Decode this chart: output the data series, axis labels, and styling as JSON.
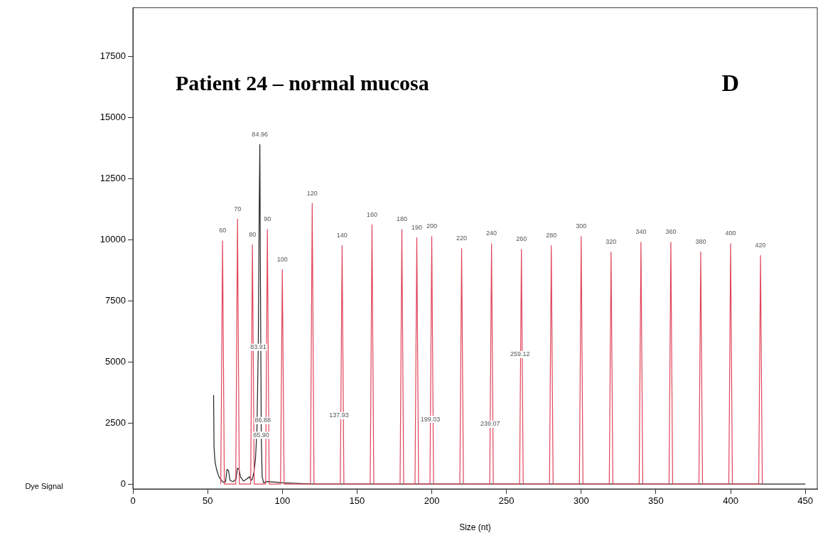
{
  "chart_data": {
    "type": "line",
    "title": "Patient 24 – normal mucosa",
    "xlabel": "Size (nt)",
    "ylabel": "Dye Signal",
    "xlim": [
      0,
      458
    ],
    "xticks": [
      0,
      50,
      100,
      150,
      200,
      250,
      300,
      350,
      400,
      450
    ],
    "ylim": [
      -200,
      19500
    ],
    "yticks": [
      0,
      2500,
      5000,
      7500,
      10000,
      12500,
      15000,
      17500
    ],
    "grid": false,
    "legend": false,
    "marker": "none",
    "line_style": "solid",
    "series": [
      {
        "color": "#e0455a",
        "x": [
          58.8,
          60,
          61.2,
          68.8,
          70,
          71.2,
          78.8,
          80,
          81.2,
          88.8,
          90,
          91.2,
          98.8,
          100,
          101.2,
          118.8,
          120,
          121.2,
          138.8,
          140,
          141.2,
          158.8,
          160,
          161.2,
          178.8,
          180,
          181.2,
          188.8,
          190,
          191.2,
          198.8,
          200,
          201.2,
          218.8,
          220,
          221.2,
          238.8,
          240,
          241.2,
          258.8,
          260,
          261.2,
          278.8,
          280,
          281.2,
          298.8,
          300,
          301.2,
          318.8,
          320,
          321.2,
          338.8,
          340,
          341.2,
          358.8,
          360,
          361.2,
          378.8,
          380,
          381.2,
          398.8,
          400,
          401.2,
          418.8,
          420,
          421.2
        ],
        "values": [
          0,
          9960,
          0,
          0,
          10850,
          0,
          0,
          9790,
          0,
          0,
          10420,
          0,
          0,
          8780,
          0,
          0,
          11490,
          0,
          0,
          9760,
          0,
          0,
          10620,
          0,
          0,
          10420,
          0,
          0,
          10080,
          0,
          0,
          10130,
          0,
          0,
          9640,
          0,
          0,
          9840,
          0,
          0,
          9610,
          0,
          0,
          9760,
          0,
          0,
          10130,
          0,
          0,
          9500,
          0,
          0,
          9900,
          0,
          0,
          9900,
          0,
          0,
          9500,
          0,
          0,
          9840,
          0,
          0,
          9350,
          0
        ]
      },
      {
        "color": "#222222",
        "x": [
          54,
          54.3,
          55,
          56,
          57,
          58,
          60,
          61,
          62,
          63,
          64,
          65,
          67,
          69,
          70,
          71,
          72,
          74,
          76,
          78,
          79,
          80,
          81,
          82,
          83,
          83.9,
          84.5,
          84.96,
          85.3,
          85.9,
          86.5,
          87.5,
          90,
          95,
          100,
          120,
          450
        ],
        "values": [
          3650,
          1500,
          900,
          600,
          400,
          250,
          100,
          60,
          100,
          600,
          550,
          150,
          100,
          200,
          650,
          600,
          300,
          120,
          200,
          300,
          150,
          200,
          500,
          1000,
          2200,
          5600,
          11000,
          13900,
          9000,
          2000,
          300,
          50,
          100,
          80,
          50,
          0,
          0
        ]
      }
    ],
    "annotations": [
      "D",
      {
        "text": "60",
        "x": 60,
        "y": 9960
      },
      {
        "text": "70",
        "x": 70,
        "y": 10850
      },
      {
        "text": "80",
        "x": 80,
        "y": 9790
      },
      {
        "text": "90",
        "x": 90,
        "y": 10420
      },
      {
        "text": "100",
        "x": 100,
        "y": 8780
      },
      {
        "text": "120",
        "x": 120,
        "y": 11490
      },
      {
        "text": "140",
        "x": 140,
        "y": 9760
      },
      {
        "text": "160",
        "x": 160,
        "y": 10620
      },
      {
        "text": "180",
        "x": 180,
        "y": 10420
      },
      {
        "text": "190",
        "x": 190,
        "y": 10080
      },
      {
        "text": "200",
        "x": 200,
        "y": 10130
      },
      {
        "text": "220",
        "x": 220,
        "y": 9640
      },
      {
        "text": "240",
        "x": 240,
        "y": 9840
      },
      {
        "text": "260",
        "x": 260,
        "y": 9610
      },
      {
        "text": "280",
        "x": 280,
        "y": 9760
      },
      {
        "text": "300",
        "x": 300,
        "y": 10130
      },
      {
        "text": "320",
        "x": 320,
        "y": 9500
      },
      {
        "text": "340",
        "x": 340,
        "y": 9900
      },
      {
        "text": "360",
        "x": 360,
        "y": 9900
      },
      {
        "text": "380",
        "x": 380,
        "y": 9500
      },
      {
        "text": "400",
        "x": 400,
        "y": 9840
      },
      {
        "text": "420",
        "x": 420,
        "y": 9350
      },
      {
        "text": "84.96",
        "x": 84.96,
        "y": 13900
      },
      {
        "text": "83.91",
        "x": 83.91,
        "y": 5600
      },
      {
        "text": "86.88",
        "x": 86.88,
        "y": 2600
      },
      {
        "text": "85.90",
        "x": 85.9,
        "y": 2000
      },
      {
        "text": "137.93",
        "x": 137.93,
        "y": 2800
      },
      {
        "text": "199.03",
        "x": 199.03,
        "y": 2650
      },
      {
        "text": "239.07",
        "x": 239.07,
        "y": 2450
      },
      {
        "text": "259.12",
        "x": 259.12,
        "y": 5300
      }
    ]
  }
}
